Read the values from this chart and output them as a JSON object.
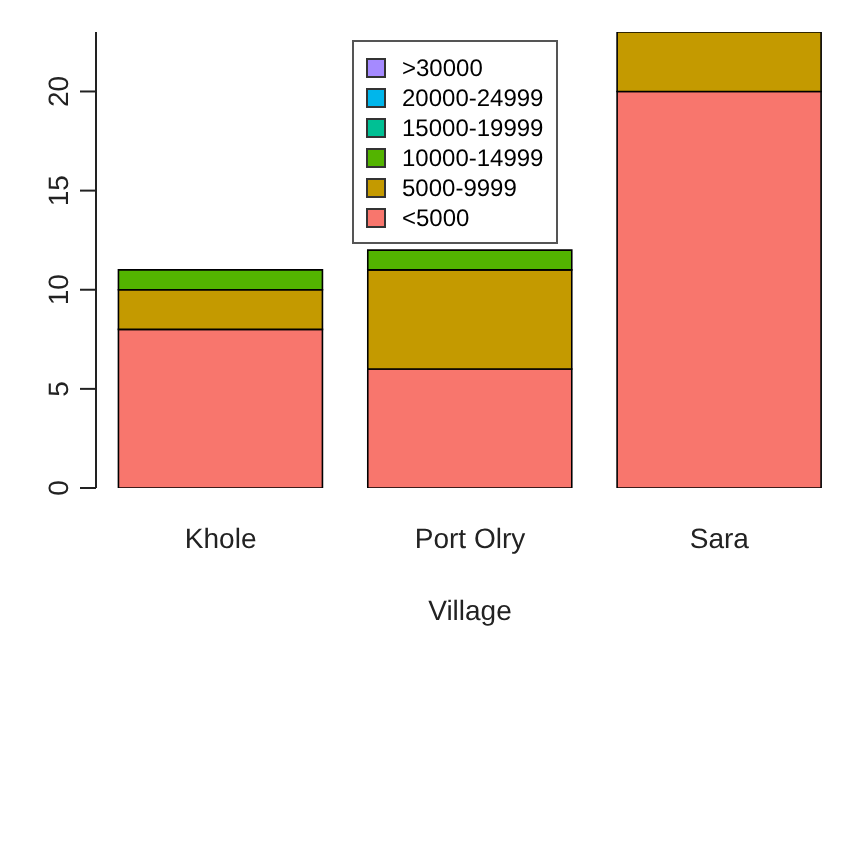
{
  "chart_data": {
    "type": "bar",
    "stacked": true,
    "xlabel": "Village",
    "categories": [
      "Khole",
      "Port Olry",
      "Sara"
    ],
    "series": [
      {
        "name": "<5000",
        "color": "#f8766d",
        "values": [
          8,
          6,
          20
        ]
      },
      {
        "name": "5000-9999",
        "color": "#c49a00",
        "values": [
          2,
          5,
          3
        ]
      },
      {
        "name": "10000-14999",
        "color": "#53b400",
        "values": [
          1,
          1,
          0
        ]
      },
      {
        "name": "15000-19999",
        "color": "#00c094",
        "values": [
          0,
          0,
          0
        ]
      },
      {
        "name": "20000-24999",
        "color": "#00b6eb",
        "values": [
          0,
          0,
          0
        ]
      },
      {
        "name": ">30000",
        "color": "#a58aff",
        "values": [
          0,
          0,
          0
        ]
      }
    ],
    "ylim": [
      0,
      23
    ],
    "yticks": [
      0,
      5,
      10,
      15,
      20
    ],
    "legend": "top"
  }
}
